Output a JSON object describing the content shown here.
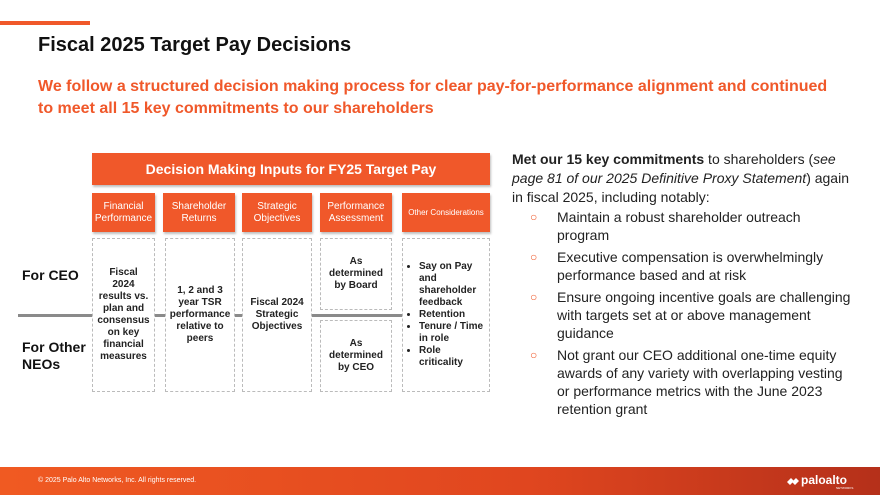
{
  "header": {
    "title": "Fiscal 2025 Target Pay Decisions",
    "subtitle": "We follow a structured decision making process for clear pay-for-performance alignment and continued to meet all 15 key commitments to our shareholders"
  },
  "diagram": {
    "title": "Decision Making Inputs for FY25 Target Pay",
    "columns": [
      "Financial Performance",
      "Shareholder Returns",
      "Strategic Objectives",
      "Performance Assessment",
      "Other Considerations"
    ],
    "rows": [
      "For CEO",
      "For Other NEOs"
    ],
    "cells": {
      "financial": "Fiscal 2024 results vs. plan and consensus on key financial measures",
      "shareholder": "1, 2 and 3 year TSR performance relative to peers",
      "strategic": "Fiscal 2024 Strategic Objectives",
      "performance_ceo": "As determined by Board",
      "performance_other": "As determined by CEO",
      "other": [
        "Say on Pay and shareholder feedback",
        "Retention",
        "Tenure / Time in role",
        "Role criticality"
      ]
    }
  },
  "commitments": {
    "intro": [
      "Met our 15 key commitments",
      " to shareholders (",
      "see page 81 of our 2025 Definitive Proxy Statement",
      ") again in fiscal 2025, including notably:"
    ],
    "bullets": [
      "Maintain a robust shareholder outreach program",
      "Executive compensation is overwhelmingly performance based and at risk",
      "Ensure ongoing incentive goals are challenging with targets set at or above management guidance",
      "Not grant our CEO additional one-time equity awards of any variety with overlapping vesting or performance metrics with the June 2023 retention grant"
    ]
  },
  "footer": {
    "copyright": "© 2025 Palo Alto Networks, Inc. All rights reserved.",
    "logo": "paloalto",
    "logo_sub": "NETWORKS"
  }
}
